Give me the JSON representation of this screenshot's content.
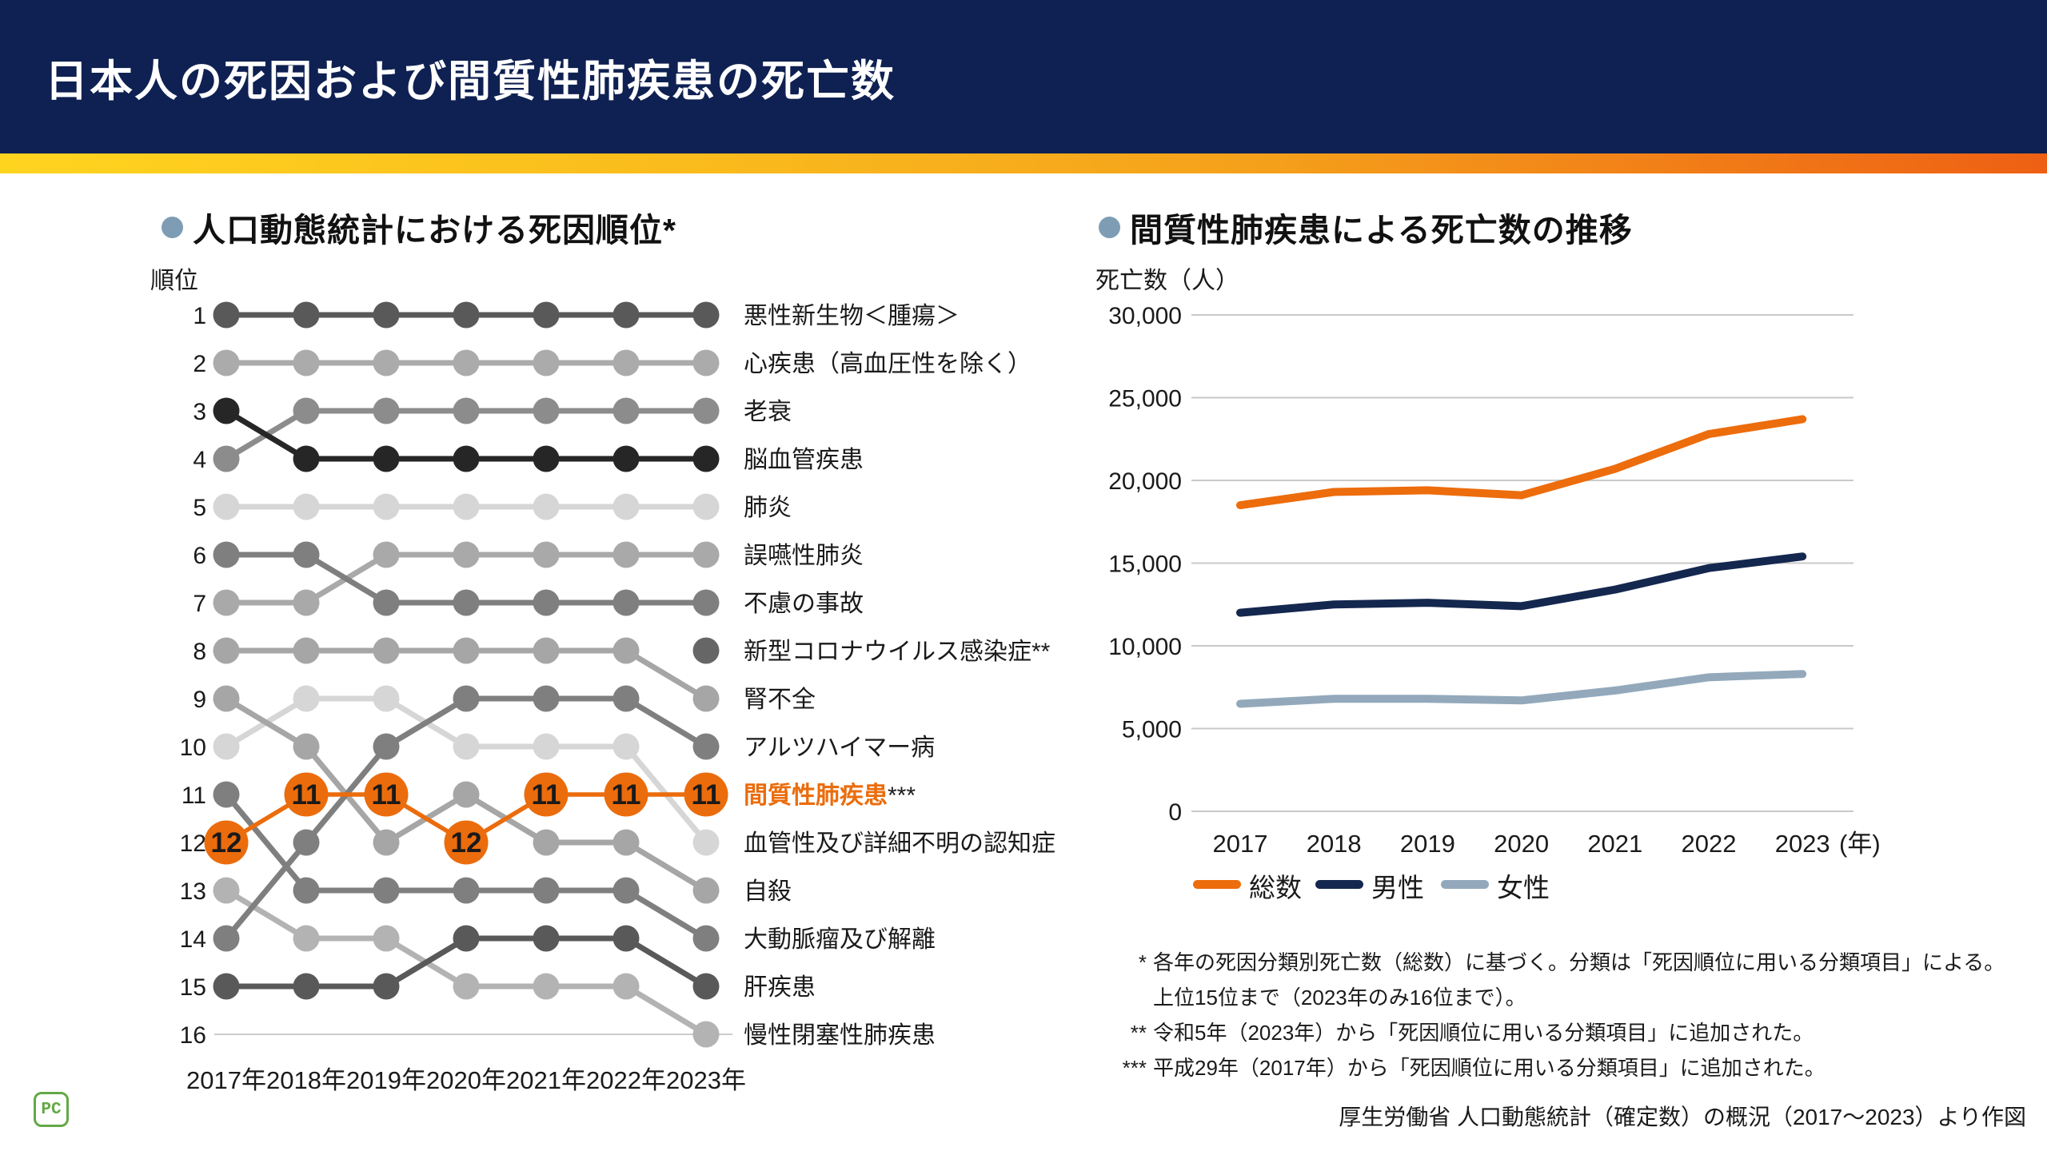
{
  "header": {
    "title": "日本人の死因および間質性肺疾患の死亡数"
  },
  "theme": {
    "header_bg": "#0F2152",
    "gradient": [
      "#FFD41F",
      "#F5A01B",
      "#EE6014"
    ],
    "bullet_color": "#7E9DB4",
    "grid_color": "#C9C9C9",
    "highlight_orange": "#EB6C0C"
  },
  "chart_data": [
    {
      "id": "cause-of-death-rank-bump",
      "type": "bump",
      "title": "人口動態統計における死因順位*",
      "ylabel": "順位",
      "categories": [
        "2017年",
        "2018年",
        "2019年",
        "2020年",
        "2021年",
        "2022年",
        "2023年"
      ],
      "rank_range": [
        1,
        16
      ],
      "rank16_rule": true,
      "series": [
        {
          "label": "悪性新生物＜腫瘍＞",
          "mark": "",
          "color": "#595959",
          "ranks": [
            1,
            1,
            1,
            1,
            1,
            1,
            1
          ]
        },
        {
          "label": "心疾患（高血圧性を除く）",
          "mark": "",
          "color": "#ABABAB",
          "ranks": [
            2,
            2,
            2,
            2,
            2,
            2,
            2
          ]
        },
        {
          "label": "老衰",
          "mark": "",
          "color": "#8C8C8C",
          "ranks": [
            4,
            3,
            3,
            3,
            3,
            3,
            3
          ]
        },
        {
          "label": "脳血管疾患",
          "mark": "",
          "color": "#262626",
          "ranks": [
            3,
            4,
            4,
            4,
            4,
            4,
            4
          ]
        },
        {
          "label": "肺炎",
          "mark": "",
          "color": "#D6D6D6",
          "ranks": [
            5,
            5,
            5,
            5,
            5,
            5,
            5
          ]
        },
        {
          "label": "誤嚥性肺炎",
          "mark": "",
          "color": "#A9A9A9",
          "ranks": [
            7,
            7,
            6,
            6,
            6,
            6,
            6
          ]
        },
        {
          "label": "不慮の事故",
          "mark": "",
          "color": "#7F7F7F",
          "ranks": [
            6,
            6,
            7,
            7,
            7,
            7,
            7
          ]
        },
        {
          "label": "新型コロナウイルス感染症",
          "mark": "**",
          "color": "#666666",
          "ranks": [
            null,
            null,
            null,
            null,
            null,
            null,
            8
          ]
        },
        {
          "label": "腎不全",
          "mark": "",
          "color": "#A6A6A6",
          "ranks": [
            8,
            8,
            8,
            8,
            8,
            8,
            9
          ]
        },
        {
          "label": "アルツハイマー病",
          "mark": "",
          "color": "#7F7F7F",
          "ranks": [
            14,
            12,
            10,
            9,
            9,
            9,
            10
          ]
        },
        {
          "label": "間質性肺疾患",
          "mark": "***",
          "color": "#EB6C0C",
          "highlight": true,
          "ranks": [
            12,
            11,
            11,
            12,
            11,
            11,
            11
          ]
        },
        {
          "label": "血管性及び詳細不明の認知症",
          "mark": "",
          "color": "#D6D6D6",
          "ranks": [
            10,
            9,
            9,
            10,
            10,
            10,
            12
          ]
        },
        {
          "label": "自殺",
          "mark": "",
          "color": "#A6A6A6",
          "ranks": [
            9,
            10,
            12,
            11,
            12,
            12,
            13
          ]
        },
        {
          "label": "大動脈瘤及び解離",
          "mark": "",
          "color": "#7F7F7F",
          "ranks": [
            11,
            13,
            13,
            13,
            13,
            13,
            14
          ]
        },
        {
          "label": "肝疾患",
          "mark": "",
          "color": "#595959",
          "ranks": [
            15,
            15,
            15,
            14,
            14,
            14,
            15
          ]
        },
        {
          "label": "慢性閉塞性肺疾患",
          "mark": "",
          "color": "#B3B3B3",
          "ranks": [
            13,
            14,
            14,
            15,
            15,
            15,
            16
          ]
        }
      ]
    },
    {
      "id": "ild-deaths-trend",
      "type": "line",
      "title": "間質性肺疾患による死亡数の推移",
      "ylabel": "死亡数（人）",
      "categories": [
        "2017",
        "2018",
        "2019",
        "2020",
        "2021",
        "2022",
        "2023"
      ],
      "x_suffix": "(年)",
      "ylim": [
        0,
        30000
      ],
      "ytick_step": 5000,
      "grid": "horizontal",
      "legend_position": "bottom-left",
      "series": [
        {
          "name": "総数",
          "color": "#ED6C0C",
          "values": [
            18500,
            19300,
            19400,
            19100,
            20700,
            22800,
            23700
          ]
        },
        {
          "name": "男性",
          "color": "#14274E",
          "values": [
            12000,
            12500,
            12600,
            12400,
            13400,
            14700,
            15400
          ]
        },
        {
          "name": "女性",
          "color": "#93A9BB",
          "values": [
            6500,
            6800,
            6800,
            6700,
            7300,
            8100,
            8300
          ]
        }
      ]
    }
  ],
  "footnotes": [
    {
      "marker": "*",
      "text": "各年の死因分類別死亡数（総数）に基づく。分類は「死因順位に用いる分類項目」による。"
    },
    {
      "marker": "",
      "text": "上位15位まで（2023年のみ16位まで）。"
    },
    {
      "marker": "**",
      "text": "令和5年（2023年）から「死因順位に用いる分類項目」に追加された。"
    },
    {
      "marker": "***",
      "text": "平成29年（2017年）から「死因順位に用いる分類項目」に追加された。"
    }
  ],
  "source": "厚生労働省 人口動態統計（確定数）の概況（2017〜2023）より作図",
  "logo": {
    "text": "PC"
  }
}
